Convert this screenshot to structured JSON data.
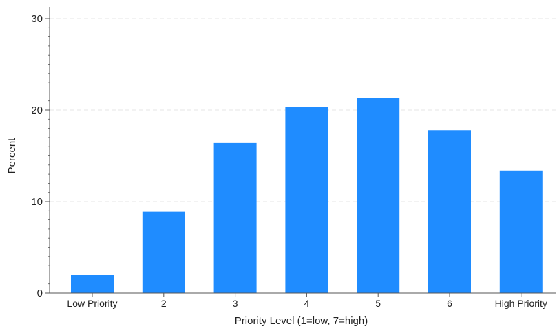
{
  "chart_data": {
    "type": "bar",
    "title": "",
    "xlabel": "Priority Level (1=low, 7=high)",
    "ylabel": "Percent",
    "categories": [
      "Low Priority",
      "2",
      "3",
      "4",
      "5",
      "6",
      "High Priority"
    ],
    "values": [
      2.0,
      8.9,
      16.4,
      20.3,
      21.3,
      17.8,
      13.4
    ],
    "ylim": [
      0,
      30
    ],
    "yticks": [
      0,
      10,
      20,
      30
    ],
    "grid": true,
    "legend": "none",
    "bar_color": "#1f8cff",
    "grid_color": "#e6e6e6",
    "axis_color": "#555555"
  }
}
